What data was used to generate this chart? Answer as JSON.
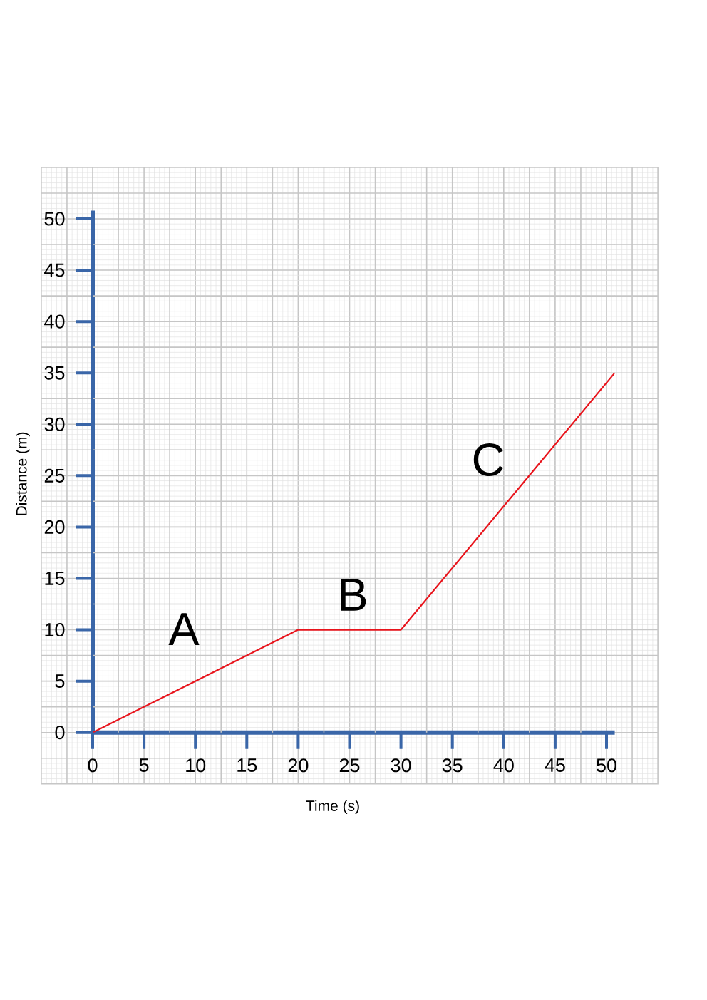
{
  "chart_data": {
    "type": "line",
    "xlabel": "Time (s)",
    "ylabel": "Distance (m)",
    "x": [
      0,
      20,
      30,
      50.8
    ],
    "values": [
      0,
      10,
      10,
      35
    ],
    "color": "#e8141c",
    "marker": "none",
    "line_style": "solid",
    "xlim": [
      0,
      50.8
    ],
    "ylim": [
      0,
      50.8
    ],
    "xticks": [
      0,
      5,
      10,
      15,
      20,
      25,
      30,
      35,
      40,
      45,
      50
    ],
    "yticks": [
      0,
      5,
      10,
      15,
      20,
      25,
      30,
      35,
      40,
      45,
      50
    ],
    "grid": true,
    "annotations": [
      "A",
      "B",
      "C"
    ]
  }
}
